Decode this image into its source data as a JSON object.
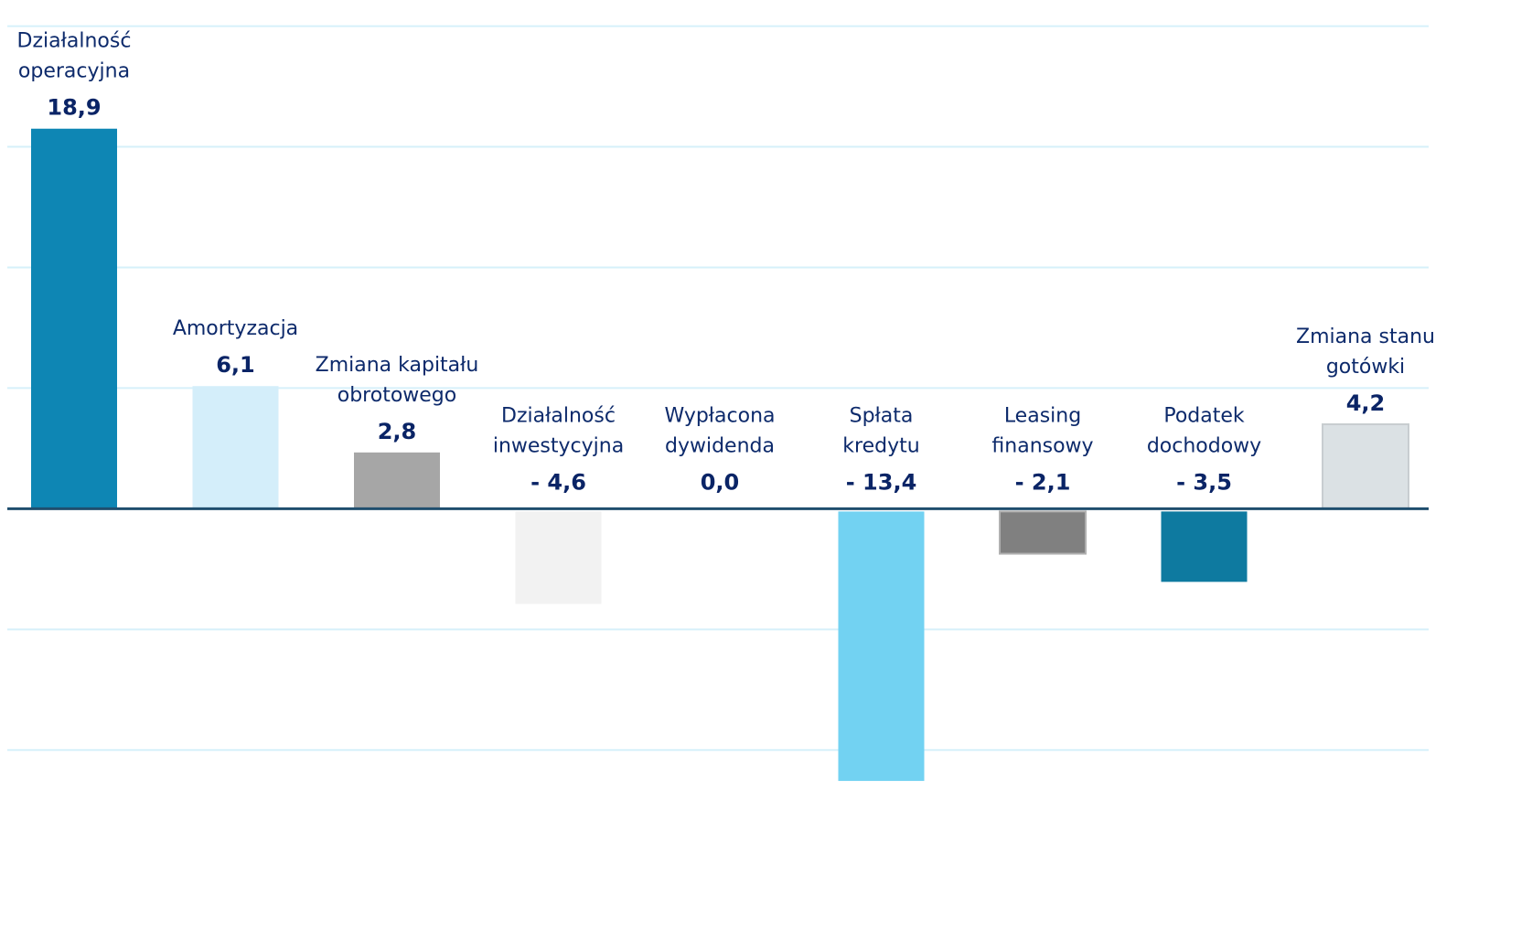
{
  "chart_data": {
    "type": "bar",
    "categories": [
      [
        "Działalność",
        "operacyjna"
      ],
      [
        "Amortyzacja"
      ],
      [
        "Zmiana kapitału",
        "obrotowego"
      ],
      [
        "Działalność",
        "inwestycyjna"
      ],
      [
        "Wypłacona",
        "dywidenda"
      ],
      [
        "Spłata",
        "kredytu"
      ],
      [
        "Leasing",
        "finansowy"
      ],
      [
        "Podatek",
        "dochodowy"
      ],
      [
        "Zmiana stanu",
        "gotówki"
      ]
    ],
    "values": [
      18.9,
      6.1,
      2.8,
      -4.6,
      0.0,
      -13.4,
      -2.1,
      -3.5,
      4.2
    ],
    "value_labels": [
      "18,9",
      "6,1",
      "2,8",
      "- 4,6",
      "0,0",
      "- 13,4",
      "- 2,1",
      "- 3,5",
      "4,2"
    ],
    "colors": [
      "#0e86b4",
      "#d4eefa",
      "#a6a6a6",
      "#f2f2f2",
      "#cccccc",
      "#72d2f2",
      "#808080",
      "#0e7aa0",
      "#dbe1e4"
    ],
    "ylim": [
      -20.9,
      25.3
    ],
    "yticks": [
      -12,
      -6,
      0,
      6,
      12,
      18,
      24
    ],
    "grid": true
  }
}
